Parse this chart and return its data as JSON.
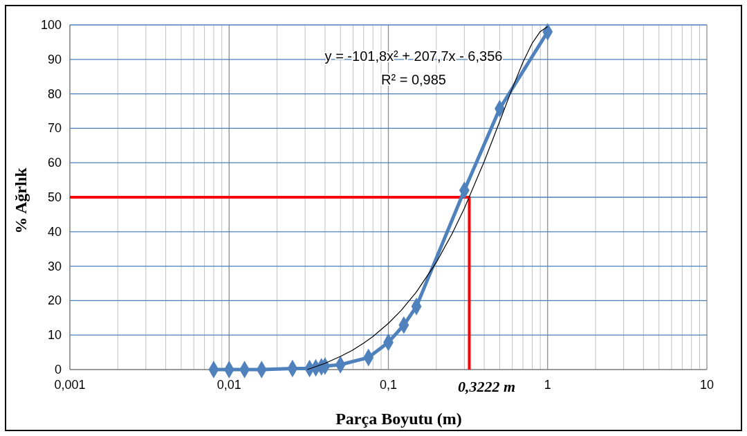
{
  "chart_data": {
    "type": "line",
    "xlabel": "Parça Boyutu (m)",
    "ylabel": "% Ağrlık",
    "log": "x",
    "grid": true,
    "marker": "diamond",
    "xlim": [
      0.001,
      10
    ],
    "xticks": [
      {
        "value": 0.001,
        "label": "0,001"
      },
      {
        "value": 0.01,
        "label": "0,01"
      },
      {
        "value": 0.1,
        "label": "0,1"
      },
      1,
      10
    ],
    "ylim": [
      0,
      100
    ],
    "yticks": [
      0,
      10,
      20,
      30,
      40,
      50,
      60,
      70,
      80,
      90,
      100
    ],
    "series": [
      {
        "type": "line",
        "color": "#ff0000",
        "marker": "none",
        "x": [
          0.001,
          0.3222,
          0.3222
        ],
        "values": [
          50,
          50,
          0
        ]
      },
      {
        "color": "#4f81bd",
        "x": [
          0.008,
          0.01,
          0.0125,
          0.016,
          0.025,
          0.032,
          0.035,
          0.038,
          0.04,
          0.05,
          0.075,
          0.1,
          0.125,
          0.15,
          0.3,
          0.5,
          1.0
        ],
        "values": [
          0,
          0,
          0,
          0,
          0.3,
          0.3,
          0.5,
          0.8,
          1,
          1.4,
          3.5,
          7.9,
          12.9,
          18.3,
          52,
          75.7,
          98
        ]
      },
      {
        "type": "line",
        "color": "#000000",
        "marker": "none",
        "x": [
          0.031,
          0.04,
          0.05,
          0.06,
          0.07,
          0.08,
          0.1,
          0.12,
          0.15,
          0.2,
          0.25,
          0.3,
          0.4,
          0.5,
          0.6,
          0.7,
          0.8,
          0.9,
          1.0
        ],
        "values": [
          0,
          1.8,
          3.8,
          5.7,
          7.7,
          9.6,
          13.4,
          17.1,
          22.5,
          31.1,
          39.2,
          46.8,
          60.4,
          72,
          81.6,
          89.2,
          94.7,
          98.1,
          99.5
        ]
      }
    ],
    "annotations": [
      "y = -101,8x² + 207,7x - 6,356",
      "R² = 0,985",
      {
        "text": "0,3222 m",
        "x": 0.3222,
        "y": 0
      }
    ]
  }
}
